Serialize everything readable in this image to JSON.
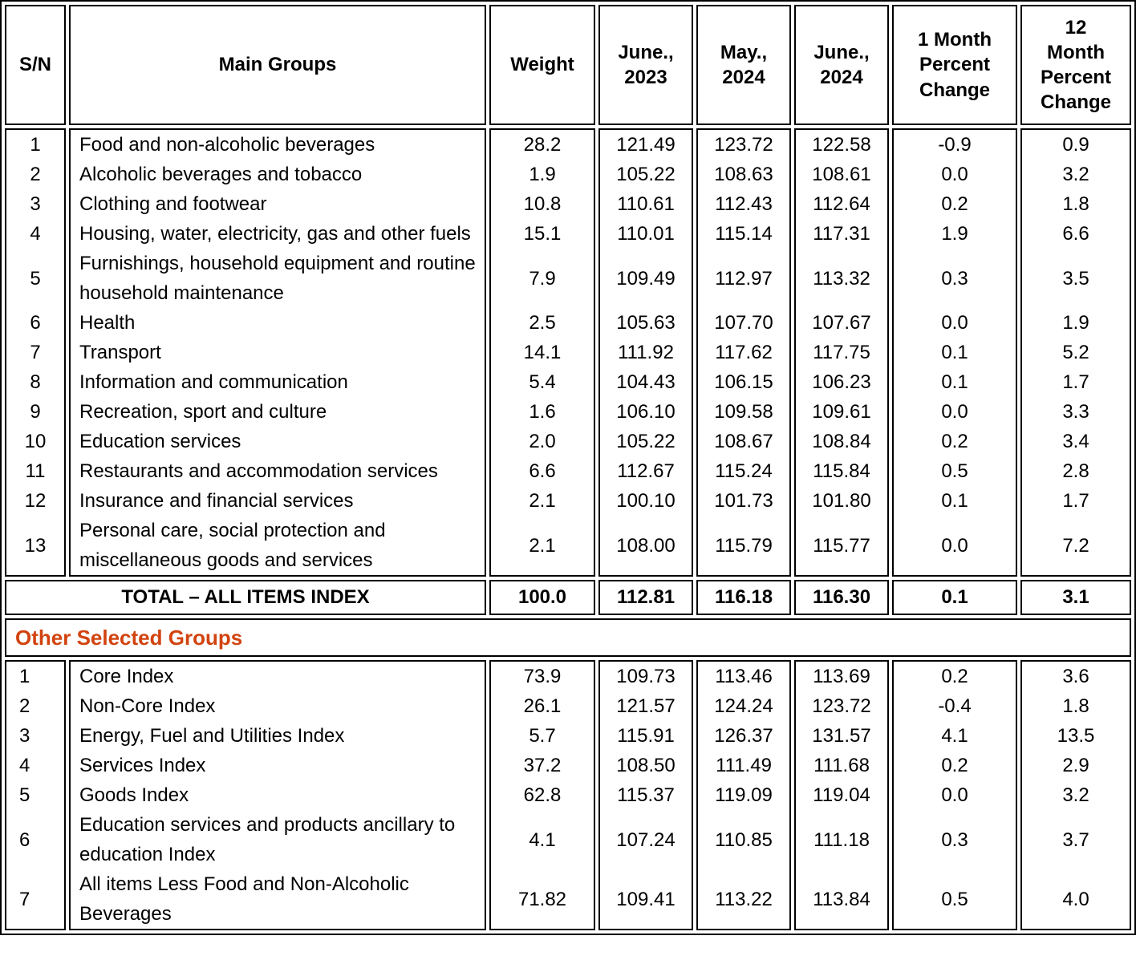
{
  "header": {
    "columns": [
      "S/N",
      "Main Groups",
      "Weight",
      "June., 2023",
      "May., 2024",
      "June., 2024",
      "1 Month Percent Change",
      "12 Month Percent Change"
    ]
  },
  "main_groups": {
    "rows": [
      {
        "sn": "1",
        "name": "Food and non-alcoholic beverages",
        "weight": "28.2",
        "jun2023": "121.49",
        "may2024": "123.72",
        "jun2024": "122.58",
        "change_1m": "-0.9",
        "change_12m": "0.9"
      },
      {
        "sn": "2",
        "name": "Alcoholic beverages and tobacco",
        "weight": "1.9",
        "jun2023": "105.22",
        "may2024": "108.63",
        "jun2024": "108.61",
        "change_1m": "0.0",
        "change_12m": "3.2"
      },
      {
        "sn": "3",
        "name": "Clothing and footwear",
        "weight": "10.8",
        "jun2023": "110.61",
        "may2024": "112.43",
        "jun2024": "112.64",
        "change_1m": "0.2",
        "change_12m": "1.8"
      },
      {
        "sn": "4",
        "name": "Housing, water, electricity, gas and other fuels",
        "weight": "15.1",
        "jun2023": "110.01",
        "may2024": "115.14",
        "jun2024": "117.31",
        "change_1m": "1.9",
        "change_12m": "6.6"
      },
      {
        "sn": "5",
        "name": "Furnishings, household equipment and routine household maintenance",
        "weight": "7.9",
        "jun2023": "109.49",
        "may2024": "112.97",
        "jun2024": "113.32",
        "change_1m": "0.3",
        "change_12m": "3.5"
      },
      {
        "sn": "6",
        "name": "Health",
        "weight": "2.5",
        "jun2023": "105.63",
        "may2024": "107.70",
        "jun2024": "107.67",
        "change_1m": "0.0",
        "change_12m": "1.9"
      },
      {
        "sn": "7",
        "name": "Transport",
        "weight": "14.1",
        "jun2023": "111.92",
        "may2024": "117.62",
        "jun2024": "117.75",
        "change_1m": "0.1",
        "change_12m": "5.2"
      },
      {
        "sn": "8",
        "name": "Information and communication",
        "weight": "5.4",
        "jun2023": "104.43",
        "may2024": "106.15",
        "jun2024": "106.23",
        "change_1m": "0.1",
        "change_12m": "1.7"
      },
      {
        "sn": "9",
        "name": "Recreation, sport and culture",
        "weight": "1.6",
        "jun2023": "106.10",
        "may2024": "109.58",
        "jun2024": "109.61",
        "change_1m": "0.0",
        "change_12m": "3.3"
      },
      {
        "sn": "10",
        "name": "Education services",
        "weight": "2.0",
        "jun2023": "105.22",
        "may2024": "108.67",
        "jun2024": "108.84",
        "change_1m": "0.2",
        "change_12m": "3.4"
      },
      {
        "sn": "11",
        "name": "Restaurants and accommodation services",
        "weight": "6.6",
        "jun2023": "112.67",
        "may2024": "115.24",
        "jun2024": "115.84",
        "change_1m": "0.5",
        "change_12m": "2.8"
      },
      {
        "sn": "12",
        "name": "Insurance and financial services",
        "weight": "2.1",
        "jun2023": "100.10",
        "may2024": "101.73",
        "jun2024": "101.80",
        "change_1m": "0.1",
        "change_12m": "1.7"
      },
      {
        "sn": "13",
        "name": "Personal care, social protection and miscellaneous goods and services",
        "weight": "2.1",
        "jun2023": "108.00",
        "may2024": "115.79",
        "jun2024": "115.77",
        "change_1m": "0.0",
        "change_12m": "7.2"
      }
    ]
  },
  "total": {
    "label": "TOTAL – ALL ITEMS INDEX",
    "weight": "100.0",
    "jun2023": "112.81",
    "may2024": "116.18",
    "jun2024": "116.30",
    "change_1m": "0.1",
    "change_12m": "3.1"
  },
  "other_groups": {
    "section_label": "Other Selected Groups",
    "rows": [
      {
        "sn": "1",
        "name": "Core Index",
        "weight": "73.9",
        "jun2023": "109.73",
        "may2024": "113.46",
        "jun2024": "113.69",
        "change_1m": "0.2",
        "change_12m": "3.6"
      },
      {
        "sn": "2",
        "name": "Non-Core Index",
        "weight": "26.1",
        "jun2023": "121.57",
        "may2024": "124.24",
        "jun2024": "123.72",
        "change_1m": "-0.4",
        "change_12m": "1.8"
      },
      {
        "sn": "3",
        "name": "Energy, Fuel and Utilities Index",
        "weight": "5.7",
        "jun2023": "115.91",
        "may2024": "126.37",
        "jun2024": "131.57",
        "change_1m": "4.1",
        "change_12m": "13.5"
      },
      {
        "sn": "4",
        "name": "Services Index",
        "weight": "37.2",
        "jun2023": "108.50",
        "may2024": "111.49",
        "jun2024": "111.68",
        "change_1m": "0.2",
        "change_12m": "2.9"
      },
      {
        "sn": "5",
        "name": "Goods Index",
        "weight": "62.8",
        "jun2023": "115.37",
        "may2024": "119.09",
        "jun2024": "119.04",
        "change_1m": "0.0",
        "change_12m": "3.2"
      },
      {
        "sn": "6",
        "name": "Education services and products ancillary to education Index",
        "weight": "4.1",
        "jun2023": "107.24",
        "may2024": "110.85",
        "jun2024": "111.18",
        "change_1m": "0.3",
        "change_12m": "3.7"
      },
      {
        "sn": "7",
        "name": "All items Less Food and Non-Alcoholic Beverages",
        "weight": "71.82",
        "jun2023": "109.41",
        "may2024": "113.22",
        "jun2024": "113.84",
        "change_1m": "0.5",
        "change_12m": "4.0"
      }
    ]
  },
  "colors": {
    "section_label_accent": "#D2430F",
    "border": "#000000",
    "text": "#000000"
  }
}
